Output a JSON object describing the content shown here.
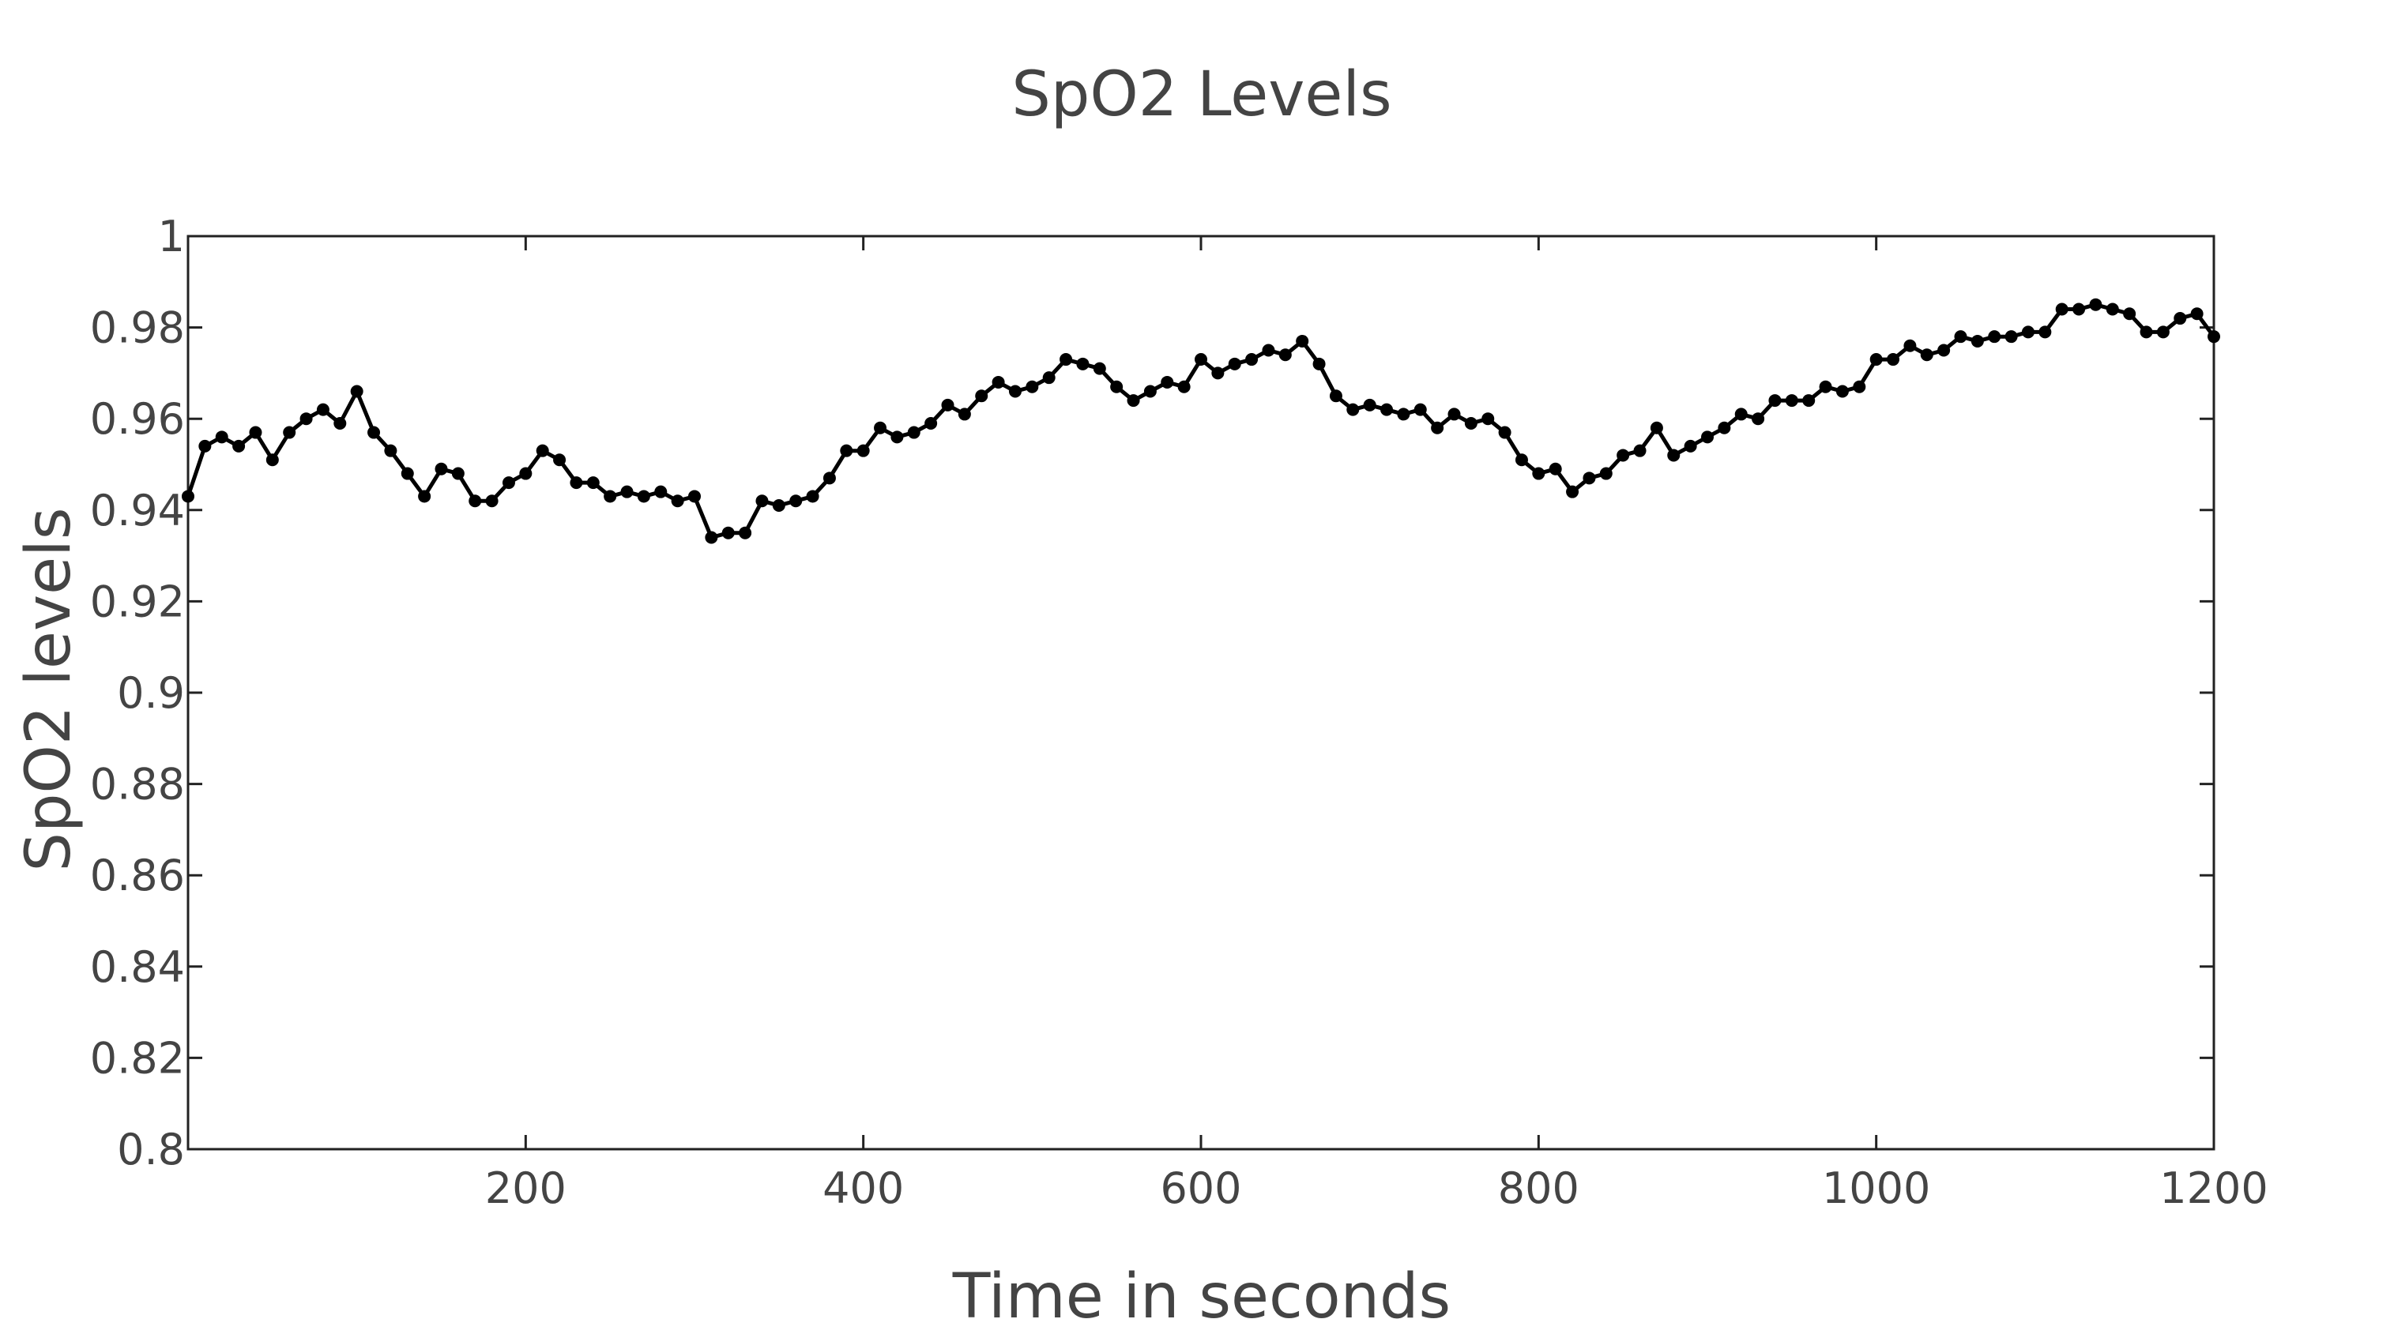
{
  "chart_data": {
    "type": "line",
    "title": "SpO2 Levels",
    "xlabel": "Time in seconds",
    "ylabel": "SpO2 levels",
    "xlim": [
      0,
      1200
    ],
    "ylim": [
      0.8,
      1
    ],
    "x_ticks": [
      {
        "value": 200,
        "label": "200"
      },
      {
        "value": 400,
        "label": "400"
      },
      {
        "value": 600,
        "label": "600"
      },
      {
        "value": 800,
        "label": "800"
      },
      {
        "value": 1000,
        "label": "1000"
      },
      {
        "value": 1200,
        "label": "1200"
      }
    ],
    "y_ticks": [
      {
        "value": 0.8,
        "label": "0.8"
      },
      {
        "value": 0.82,
        "label": "0.82"
      },
      {
        "value": 0.84,
        "label": "0.84"
      },
      {
        "value": 0.86,
        "label": "0.86"
      },
      {
        "value": 0.88,
        "label": "0.88"
      },
      {
        "value": 0.9,
        "label": "0.9"
      },
      {
        "value": 0.92,
        "label": "0.92"
      },
      {
        "value": 0.94,
        "label": "0.94"
      },
      {
        "value": 0.96,
        "label": "0.96"
      },
      {
        "value": 0.98,
        "label": "0.98"
      },
      {
        "value": 1,
        "label": "1"
      }
    ],
    "grid": false,
    "legend": "none",
    "series_color": "#000000",
    "series": [
      {
        "x": [
          0,
          10,
          20,
          30,
          40,
          50,
          60,
          70,
          80,
          90,
          100,
          110,
          120,
          130,
          140,
          150,
          160,
          170,
          180,
          190,
          200,
          210,
          220,
          230,
          240,
          250,
          260,
          270,
          280,
          290,
          300,
          310,
          320,
          330,
          340,
          350,
          360,
          370,
          380,
          390,
          400,
          410,
          420,
          430,
          440,
          450,
          460,
          470,
          480,
          490,
          500,
          510,
          520,
          530,
          540,
          550,
          560,
          570,
          580,
          590,
          600,
          610,
          620,
          630,
          640,
          650,
          660,
          670,
          680,
          690,
          700,
          710,
          720,
          730,
          740,
          750,
          760,
          770,
          780,
          790,
          800,
          810,
          820,
          830,
          840,
          850,
          860,
          870,
          880,
          890,
          900,
          910,
          920,
          930,
          940,
          950,
          960,
          970,
          980,
          990,
          1000,
          1010,
          1020,
          1030,
          1040,
          1050,
          1060,
          1070,
          1080,
          1090,
          1100,
          1110,
          1120,
          1130,
          1140,
          1150,
          1160,
          1170,
          1180,
          1190,
          1200
        ],
        "y": [
          0.943,
          0.954,
          0.956,
          0.954,
          0.957,
          0.951,
          0.957,
          0.96,
          0.962,
          0.959,
          0.966,
          0.957,
          0.953,
          0.948,
          0.943,
          0.949,
          0.948,
          0.942,
          0.942,
          0.946,
          0.948,
          0.953,
          0.951,
          0.946,
          0.946,
          0.943,
          0.944,
          0.943,
          0.944,
          0.942,
          0.943,
          0.934,
          0.935,
          0.935,
          0.942,
          0.941,
          0.942,
          0.943,
          0.947,
          0.953,
          0.953,
          0.958,
          0.956,
          0.957,
          0.959,
          0.963,
          0.961,
          0.965,
          0.968,
          0.966,
          0.967,
          0.969,
          0.973,
          0.972,
          0.971,
          0.967,
          0.964,
          0.966,
          0.968,
          0.967,
          0.973,
          0.97,
          0.972,
          0.973,
          0.975,
          0.974,
          0.977,
          0.972,
          0.965,
          0.962,
          0.963,
          0.962,
          0.961,
          0.962,
          0.958,
          0.961,
          0.959,
          0.96,
          0.957,
          0.951,
          0.948,
          0.949,
          0.944,
          0.947,
          0.948,
          0.952,
          0.953,
          0.958,
          0.952,
          0.954,
          0.956,
          0.958,
          0.961,
          0.96,
          0.964,
          0.964,
          0.964,
          0.967,
          0.966,
          0.967,
          0.973,
          0.973,
          0.976,
          0.974,
          0.975,
          0.978,
          0.977,
          0.978,
          0.978,
          0.979,
          0.979,
          0.984,
          0.984,
          0.985,
          0.984,
          0.983,
          0.979,
          0.979,
          0.982,
          0.983,
          0.978
        ]
      }
    ]
  }
}
